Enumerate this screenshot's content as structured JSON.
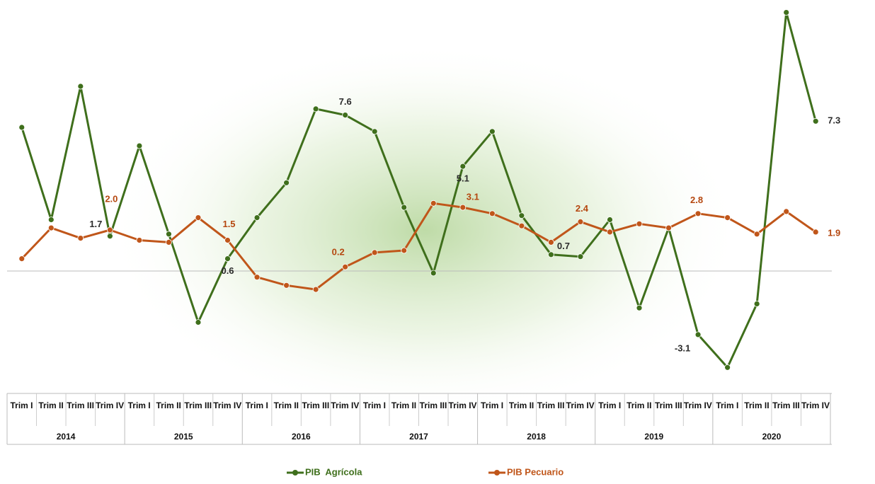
{
  "chart_data": {
    "type": "line",
    "categories": [
      "Trim I",
      "Trim II",
      "Trim III",
      "Trim IV",
      "Trim I",
      "Trim II",
      "Trim III",
      "Trim IV",
      "Trim I",
      "Trim II",
      "Trim III",
      "Trim IV",
      "Trim I",
      "Trim II",
      "Trim III",
      "Trim IV",
      "Trim I",
      "Trim II",
      "Trim III",
      "Trim IV",
      "Trim I",
      "Trim II",
      "Trim III",
      "Trim IV",
      "Trim I",
      "Trim II",
      "Trim III",
      "Trim IV"
    ],
    "years": [
      "2014",
      "2015",
      "2016",
      "2017",
      "2018",
      "2019",
      "2020"
    ],
    "ylim": [
      -6,
      13
    ],
    "series": [
      {
        "name": "PIB  Agrícola",
        "color": "#3f6f1c",
        "label_color": "#2b2b2b",
        "values": [
          7.0,
          2.5,
          9.0,
          1.7,
          6.1,
          1.8,
          -2.5,
          0.6,
          2.6,
          4.3,
          7.9,
          7.6,
          6.8,
          3.1,
          -0.1,
          5.1,
          6.8,
          2.7,
          0.8,
          0.7,
          2.5,
          -1.8,
          2.1,
          -3.1,
          -4.7,
          -1.6,
          12.6,
          7.3
        ],
        "value_labels": [
          null,
          null,
          null,
          "1.7",
          null,
          null,
          null,
          "0.6",
          null,
          null,
          null,
          "7.6",
          null,
          null,
          null,
          "5.1",
          null,
          null,
          null,
          "0.7",
          null,
          null,
          null,
          "-3.1",
          null,
          null,
          null,
          "7.3"
        ]
      },
      {
        "name": "PIB Pecuario",
        "color": "#c0561a",
        "label_color": "#b5470f",
        "values": [
          0.6,
          2.1,
          1.6,
          2.0,
          1.5,
          1.4,
          2.6,
          1.5,
          -0.3,
          -0.7,
          -0.9,
          0.2,
          0.9,
          1.0,
          3.3,
          3.1,
          2.8,
          2.2,
          1.4,
          2.4,
          1.9,
          2.3,
          2.1,
          2.8,
          2.6,
          1.8,
          2.9,
          1.9
        ],
        "value_labels": [
          null,
          null,
          null,
          "2.0",
          null,
          null,
          null,
          "1.5",
          null,
          null,
          null,
          "0.2",
          null,
          null,
          null,
          "3.1",
          null,
          null,
          null,
          "2.4",
          null,
          null,
          null,
          "2.8",
          null,
          null,
          null,
          "1.9"
        ]
      }
    ]
  }
}
